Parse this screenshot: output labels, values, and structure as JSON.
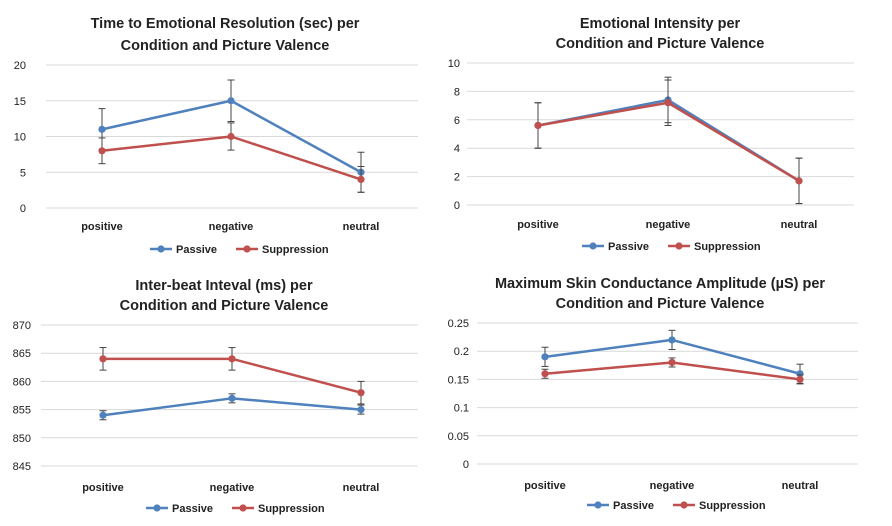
{
  "series_colors": {
    "Passive": "#4f81bd",
    "Suppression": "#c0504d"
  },
  "chart_data": [
    {
      "type": "line",
      "title_lines": [
        "Time to Emotional Resolution (sec) per",
        "Condition and Picture Valence"
      ],
      "categories": [
        "positive",
        "negative",
        "neutral"
      ],
      "ylim": [
        0,
        20
      ],
      "yticks": [
        0,
        5,
        10,
        15,
        20
      ],
      "ytick_labels": [
        "0",
        "5",
        "10",
        "15",
        "20"
      ],
      "grid": true,
      "legend": "bottom",
      "series": [
        {
          "name": "Passive",
          "values": [
            11,
            15,
            5
          ],
          "errors": [
            2.9,
            2.9,
            2.8
          ]
        },
        {
          "name": "Suppression",
          "values": [
            8,
            10,
            4
          ],
          "errors": [
            1.8,
            1.9,
            1.8
          ]
        }
      ]
    },
    {
      "type": "line",
      "title_lines": [
        "Emotional Intensity per",
        "Condition  and Picture Valence"
      ],
      "categories": [
        "positive",
        "negative",
        "neutral"
      ],
      "ylim": [
        0,
        10
      ],
      "yticks": [
        0,
        2,
        4,
        6,
        8,
        10
      ],
      "ytick_labels": [
        "0",
        "2",
        "4",
        "6",
        "8",
        "10"
      ],
      "grid": true,
      "legend": "bottom",
      "series": [
        {
          "name": "Passive",
          "values": [
            5.6,
            7.4,
            1.7
          ],
          "errors": [
            1.6,
            1.6,
            1.6
          ]
        },
        {
          "name": "Suppression",
          "values": [
            5.6,
            7.2,
            1.7
          ],
          "errors": [
            1.6,
            1.6,
            1.6
          ]
        }
      ]
    },
    {
      "type": "line",
      "title_lines": [
        "Inter-beat Inteval (ms) per",
        "Condition  and Picture Valence"
      ],
      "categories": [
        "positive",
        "negative",
        "neutral"
      ],
      "ylim": [
        845,
        870
      ],
      "yticks": [
        845,
        850,
        855,
        860,
        865,
        870
      ],
      "ytick_labels": [
        "845",
        "850",
        "855",
        "860",
        "865",
        "870"
      ],
      "grid": true,
      "legend": "bottom",
      "series": [
        {
          "name": "Passive",
          "values": [
            854,
            857,
            855
          ],
          "errors": [
            0.8,
            0.8,
            0.8
          ]
        },
        {
          "name": "Suppression",
          "values": [
            864,
            864,
            858
          ],
          "errors": [
            2,
            2,
            2
          ]
        }
      ]
    },
    {
      "type": "line",
      "title_lines": [
        "Maximum Skin Conductance Amplitude (µS) per",
        "Condition  and Picture Valence"
      ],
      "categories": [
        "positive",
        "negative",
        "neutral"
      ],
      "ylim": [
        0,
        0.25
      ],
      "yticks": [
        0,
        0.05,
        0.1,
        0.15,
        0.2,
        0.25
      ],
      "ytick_labels": [
        "0",
        "0.05",
        "0.1",
        "0.15",
        "0.2",
        "0.25"
      ],
      "grid": true,
      "legend": "bottom",
      "series": [
        {
          "name": "Passive",
          "values": [
            0.19,
            0.22,
            0.16
          ],
          "errors": [
            0.017,
            0.017,
            0.017
          ]
        },
        {
          "name": "Suppression",
          "values": [
            0.16,
            0.18,
            0.15
          ],
          "errors": [
            0.008,
            0.008,
            0.008
          ]
        }
      ]
    }
  ]
}
